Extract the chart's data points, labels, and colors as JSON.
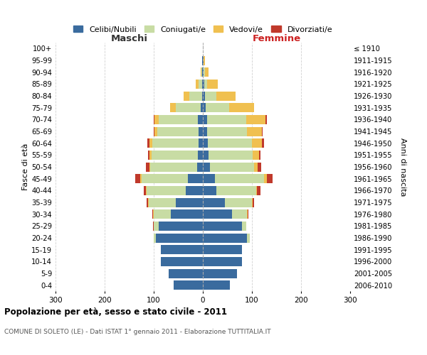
{
  "age_groups": [
    "0-4",
    "5-9",
    "10-14",
    "15-19",
    "20-24",
    "25-29",
    "30-34",
    "35-39",
    "40-44",
    "45-49",
    "50-54",
    "55-59",
    "60-64",
    "65-69",
    "70-74",
    "75-79",
    "80-84",
    "85-89",
    "90-94",
    "95-99",
    "100+"
  ],
  "birth_years": [
    "2006-2010",
    "2001-2005",
    "1996-2000",
    "1991-1995",
    "1986-1990",
    "1981-1985",
    "1976-1980",
    "1971-1975",
    "1966-1970",
    "1961-1965",
    "1956-1960",
    "1951-1955",
    "1946-1950",
    "1941-1945",
    "1936-1940",
    "1931-1935",
    "1926-1930",
    "1921-1925",
    "1916-1920",
    "1911-1915",
    "≤ 1910"
  ],
  "maschi": {
    "celibi": [
      60,
      70,
      85,
      85,
      95,
      90,
      65,
      55,
      35,
      30,
      12,
      10,
      8,
      8,
      10,
      5,
      2,
      1,
      1,
      1,
      0
    ],
    "coniugati": [
      0,
      0,
      0,
      0,
      5,
      10,
      35,
      55,
      80,
      95,
      95,
      95,
      95,
      85,
      80,
      50,
      25,
      8,
      2,
      1,
      0
    ],
    "vedovi": [
      0,
      0,
      0,
      0,
      0,
      0,
      1,
      1,
      1,
      2,
      2,
      3,
      5,
      5,
      8,
      12,
      12,
      5,
      2,
      0,
      0
    ],
    "divorziati": [
      0,
      0,
      0,
      0,
      0,
      1,
      2,
      3,
      5,
      10,
      7,
      4,
      5,
      2,
      2,
      0,
      0,
      0,
      0,
      0,
      0
    ]
  },
  "femmine": {
    "nubili": [
      55,
      70,
      80,
      80,
      90,
      80,
      60,
      45,
      28,
      25,
      14,
      12,
      10,
      8,
      8,
      6,
      5,
      3,
      1,
      1,
      0
    ],
    "coniugate": [
      0,
      0,
      0,
      0,
      5,
      8,
      30,
      55,
      80,
      100,
      90,
      90,
      90,
      82,
      80,
      48,
      22,
      6,
      3,
      1,
      0
    ],
    "vedove": [
      0,
      0,
      0,
      0,
      0,
      0,
      1,
      2,
      2,
      5,
      8,
      12,
      20,
      30,
      40,
      50,
      40,
      22,
      8,
      2,
      0
    ],
    "divorziate": [
      0,
      0,
      0,
      0,
      0,
      1,
      2,
      3,
      8,
      12,
      7,
      4,
      5,
      2,
      2,
      0,
      0,
      0,
      0,
      0,
      0
    ]
  },
  "colors": {
    "celibi_nubili": "#3a6b9e",
    "coniugati": "#c8dca4",
    "vedovi": "#f0c050",
    "divorziati": "#c0392b"
  },
  "title": "Popolazione per età, sesso e stato civile - 2011",
  "subtitle": "COMUNE DI SOLETO (LE) - Dati ISTAT 1° gennaio 2011 - Elaborazione TUTTITALIA.IT",
  "xlabel_left": "Maschi",
  "xlabel_right": "Femmine",
  "ylabel_left": "Fasce di età",
  "ylabel_right": "Anni di nascita",
  "xlim": 300,
  "bg_color": "#ffffff",
  "grid_color": "#cccccc"
}
